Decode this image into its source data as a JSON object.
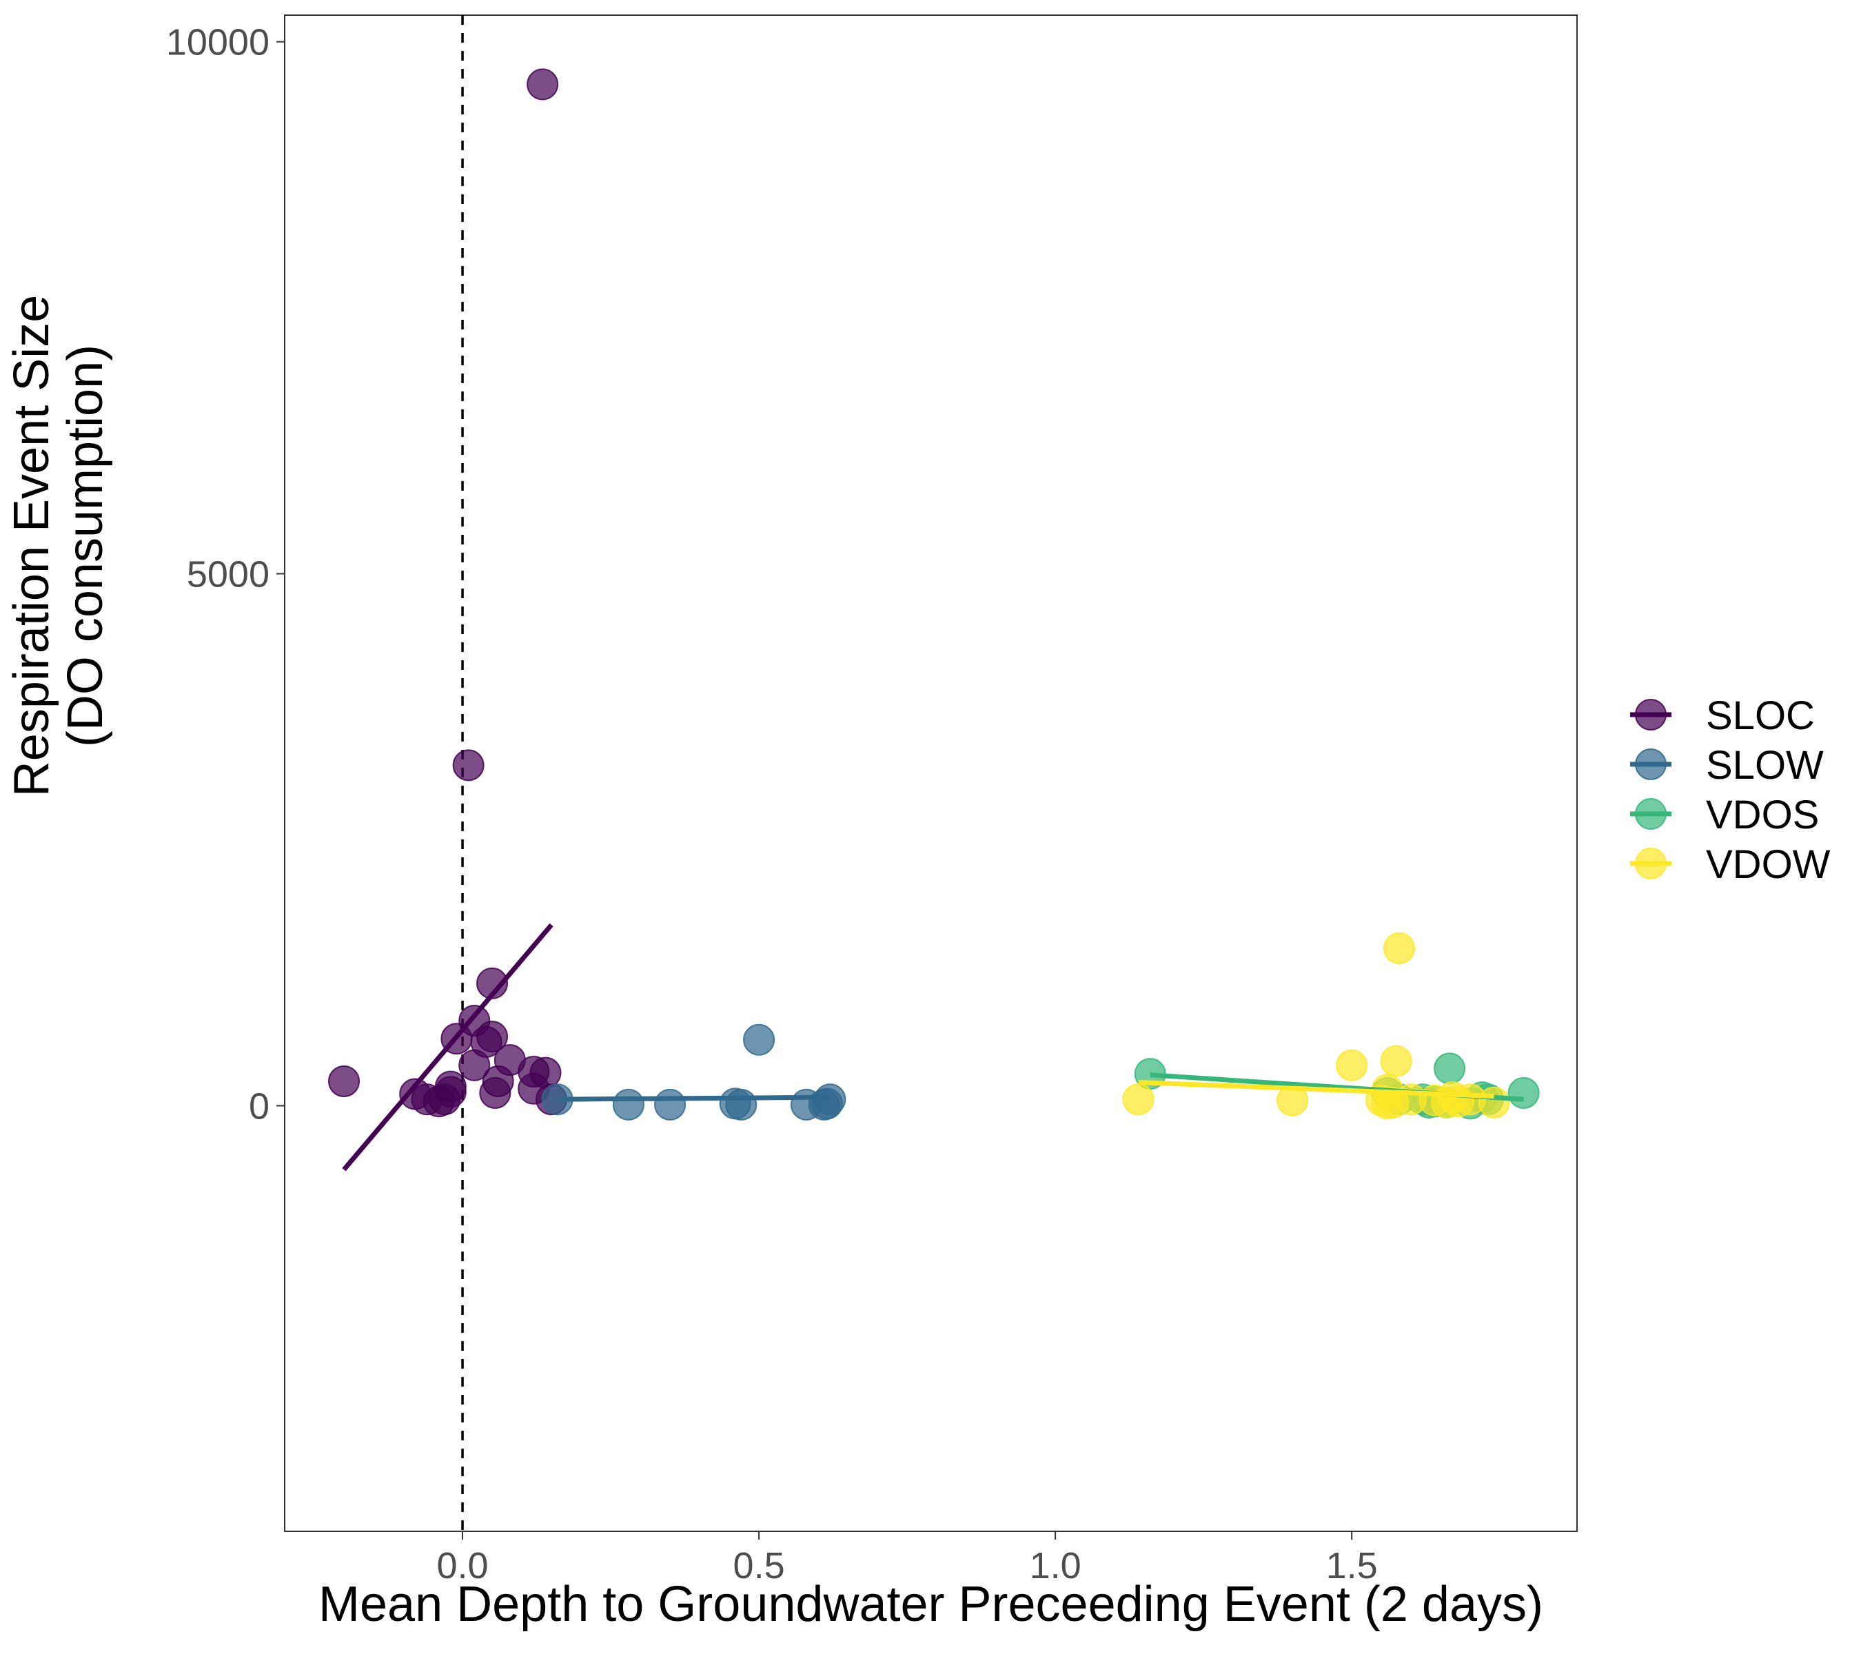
{
  "chart_data": {
    "type": "scatter",
    "title": "",
    "xlabel": "Mean Depth to Groundwater Preceeding Event (2 days)",
    "ylabel": [
      "Respiration Event Size",
      "(DO consumption)"
    ],
    "xlim": [
      -0.3,
      1.88
    ],
    "ylim": [
      -4000,
      10250
    ],
    "x_ticks": [
      0.0,
      0.5,
      1.0,
      1.5
    ],
    "x_tick_labels": [
      "0.0",
      "0.5",
      "1.0",
      "1.5"
    ],
    "y_ticks": [
      0,
      5000,
      10000
    ],
    "y_tick_labels": [
      "0",
      "5000",
      "10000"
    ],
    "reference_line": {
      "x": 0.0,
      "style": "dashed",
      "color": "#000000"
    },
    "grid": false,
    "legend_position": "right",
    "series": [
      {
        "name": "SLOC",
        "color": "#440154",
        "points": [
          [
            -0.2,
            230
          ],
          [
            -0.08,
            110
          ],
          [
            -0.06,
            60
          ],
          [
            -0.04,
            40
          ],
          [
            -0.03,
            60
          ],
          [
            -0.02,
            130
          ],
          [
            -0.02,
            180
          ],
          [
            -0.01,
            630
          ],
          [
            0.01,
            3200
          ],
          [
            0.02,
            800
          ],
          [
            0.02,
            380
          ],
          [
            0.04,
            600
          ],
          [
            0.05,
            1150
          ],
          [
            0.05,
            650
          ],
          [
            0.055,
            120
          ],
          [
            0.06,
            230
          ],
          [
            0.08,
            430
          ],
          [
            0.12,
            320
          ],
          [
            0.12,
            160
          ],
          [
            0.135,
            9600
          ],
          [
            0.14,
            310
          ],
          [
            0.15,
            60
          ]
        ],
        "fit": [
          [
            -0.2,
            -600
          ],
          [
            0.15,
            1700
          ]
        ]
      },
      {
        "name": "SLOW",
        "color": "#31688E",
        "points": [
          [
            0.16,
            60
          ],
          [
            0.28,
            10
          ],
          [
            0.35,
            10
          ],
          [
            0.46,
            20
          ],
          [
            0.47,
            10
          ],
          [
            0.5,
            620
          ],
          [
            0.58,
            10
          ],
          [
            0.61,
            10
          ],
          [
            0.615,
            20
          ],
          [
            0.62,
            60
          ]
        ],
        "fit": [
          [
            0.16,
            60
          ],
          [
            0.62,
            80
          ]
        ]
      },
      {
        "name": "VDOS",
        "color": "#35B779",
        "points": [
          [
            1.16,
            300
          ],
          [
            1.56,
            120
          ],
          [
            1.58,
            60
          ],
          [
            1.62,
            60
          ],
          [
            1.63,
            30
          ],
          [
            1.64,
            40
          ],
          [
            1.66,
            30
          ],
          [
            1.665,
            350
          ],
          [
            1.7,
            20
          ],
          [
            1.72,
            80
          ],
          [
            1.73,
            60
          ],
          [
            1.79,
            120
          ]
        ],
        "fit": [
          [
            1.16,
            290
          ],
          [
            1.79,
            60
          ]
        ]
      },
      {
        "name": "VDOW",
        "color": "#FDE725",
        "points": [
          [
            1.14,
            60
          ],
          [
            1.4,
            50
          ],
          [
            1.5,
            380
          ],
          [
            1.55,
            50
          ],
          [
            1.56,
            20
          ],
          [
            1.56,
            150
          ],
          [
            1.57,
            30
          ],
          [
            1.575,
            420
          ],
          [
            1.58,
            1480
          ],
          [
            1.6,
            60
          ],
          [
            1.64,
            50
          ],
          [
            1.66,
            30
          ],
          [
            1.67,
            80
          ],
          [
            1.68,
            40
          ],
          [
            1.7,
            60
          ],
          [
            1.74,
            30
          ]
        ],
        "fit": [
          [
            1.14,
            220
          ],
          [
            1.74,
            90
          ]
        ]
      }
    ]
  }
}
